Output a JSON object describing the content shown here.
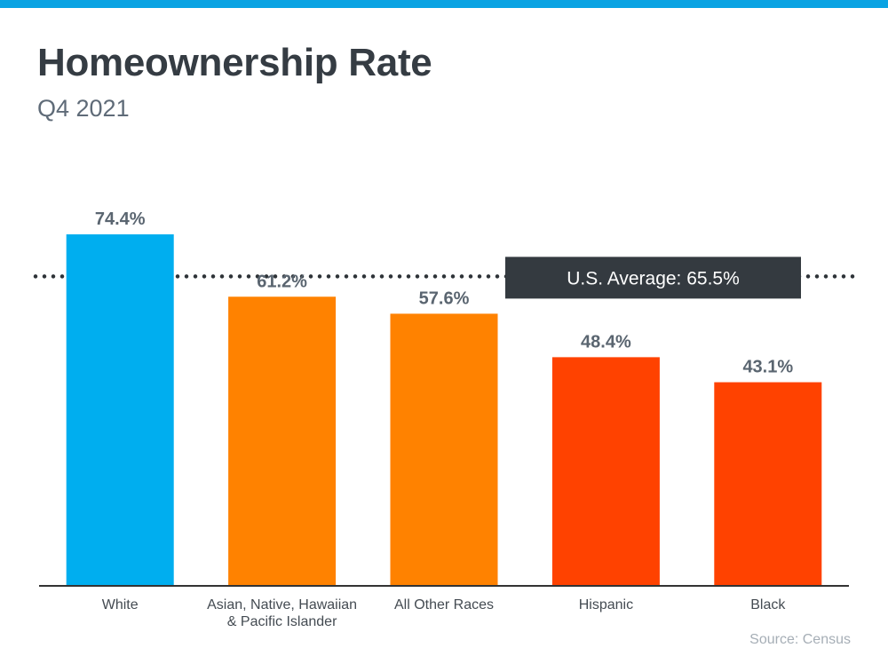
{
  "header": {
    "title": "Homeownership Rate",
    "subtitle": "Q4 2021"
  },
  "footer": {
    "source": "Source: Census"
  },
  "colors": {
    "top_bar": "#0aa3e3",
    "title": "#353c43",
    "subtitle": "#5f6b78",
    "value_label": "#5a6570",
    "category_label": "#444b52",
    "average_box": "#343a40",
    "average_text": "#ffffff",
    "axis": "#333333",
    "dots": "#2e3338"
  },
  "chart_data": {
    "type": "bar",
    "categories": [
      [
        "White"
      ],
      [
        "Asian, Native, Hawaiian",
        "& Pacific Islander"
      ],
      [
        "All Other Races"
      ],
      [
        "Hispanic"
      ],
      [
        "Black"
      ]
    ],
    "values": [
      74.4,
      61.2,
      57.6,
      48.4,
      43.1
    ],
    "value_labels": [
      "74.4%",
      "61.2%",
      "57.6%",
      "48.4%",
      "43.1%"
    ],
    "bar_colors": [
      "#00aeef",
      "#ff8200",
      "#ff8200",
      "#ff4200",
      "#ff4200"
    ],
    "reference_line": {
      "value": 65.5,
      "label": "U.S. Average: 65.5%",
      "style": "dotted"
    },
    "ylim": [
      0,
      74.4
    ],
    "grid": false,
    "legend": "none"
  }
}
